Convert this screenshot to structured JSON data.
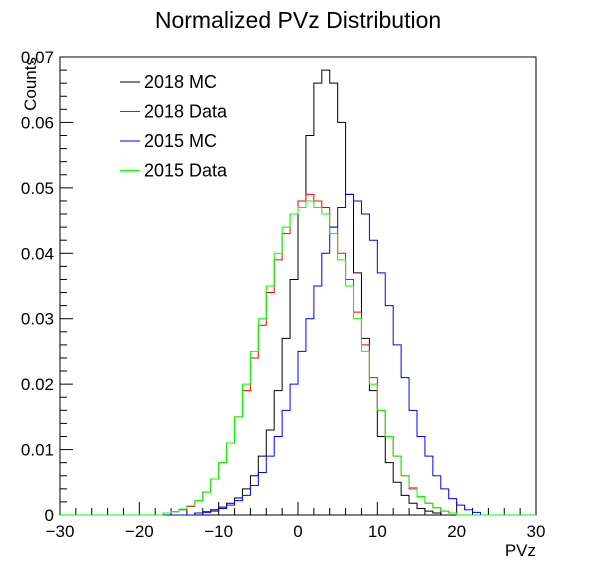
{
  "chart_data": {
    "type": "histogram",
    "title": "Normalized PVz Distribution",
    "xlabel": "PVz",
    "ylabel": "Counts",
    "xlim": [
      -30,
      30
    ],
    "ylim": [
      0,
      0.07
    ],
    "bin_width": 1,
    "x_ticks": [
      "−30",
      "−20",
      "−10",
      "0",
      "10",
      "20",
      "30"
    ],
    "y_ticks": [
      "0",
      "0.01",
      "0.02",
      "0.03",
      "0.04",
      "0.05",
      "0.06",
      "0.07"
    ],
    "x_tick_values": [
      -30,
      -20,
      -10,
      0,
      10,
      20,
      30
    ],
    "y_tick_values": [
      0,
      0.01,
      0.02,
      0.03,
      0.04,
      0.05,
      0.06,
      0.07
    ],
    "legend_position": "top-left",
    "series": [
      {
        "name": "2018 MC",
        "color": "#000000",
        "bin_edges_start": -15,
        "values": [
          0,
          0,
          0.0003,
          0.0005,
          0.0008,
          0.0012,
          0.0018,
          0.0026,
          0.004,
          0.006,
          0.009,
          0.013,
          0.019,
          0.027,
          0.036,
          0.048,
          0.058,
          0.066,
          0.068,
          0.066,
          0.06,
          0.049,
          0.037,
          0.027,
          0.019,
          0.012,
          0.008,
          0.005,
          0.003,
          0.0018,
          0.001,
          0.0006,
          0.0003,
          0,
          0
        ]
      },
      {
        "name": "2018 Data",
        "color": "#ff0000",
        "bin_edges_start": -18,
        "values": [
          0,
          0.0003,
          0.0005,
          0.0008,
          0.0013,
          0.0022,
          0.0035,
          0.0055,
          0.008,
          0.011,
          0.015,
          0.019,
          0.024,
          0.029,
          0.034,
          0.039,
          0.043,
          0.046,
          0.048,
          0.049,
          0.048,
          0.047,
          0.044,
          0.04,
          0.036,
          0.031,
          0.026,
          0.021,
          0.016,
          0.012,
          0.009,
          0.006,
          0.004,
          0.0028,
          0.0018,
          0.0011,
          0.0006,
          0.0003,
          0
        ]
      },
      {
        "name": "2015 MC",
        "color": "#0000ff",
        "bin_edges_start": -14,
        "values": [
          0,
          0.0003,
          0.0004,
          0.0006,
          0.001,
          0.0015,
          0.0022,
          0.003,
          0.0045,
          0.0065,
          0.009,
          0.012,
          0.016,
          0.02,
          0.025,
          0.03,
          0.035,
          0.04,
          0.044,
          0.047,
          0.049,
          0.048,
          0.046,
          0.042,
          0.037,
          0.032,
          0.026,
          0.021,
          0.016,
          0.012,
          0.009,
          0.006,
          0.004,
          0.0025,
          0.0015,
          0.0008,
          0.0004,
          0
        ]
      },
      {
        "name": "2015 Data",
        "color": "#00ff00",
        "bin_edges_start": -18,
        "values": [
          0,
          0.0003,
          0.0005,
          0.0009,
          0.0014,
          0.0022,
          0.0035,
          0.0055,
          0.008,
          0.011,
          0.015,
          0.02,
          0.025,
          0.03,
          0.035,
          0.04,
          0.044,
          0.046,
          0.047,
          0.048,
          0.047,
          0.046,
          0.043,
          0.039,
          0.035,
          0.03,
          0.025,
          0.02,
          0.016,
          0.012,
          0.009,
          0.006,
          0.0042,
          0.0028,
          0.0018,
          0.0011,
          0.0006,
          0.0003,
          0
        ]
      }
    ]
  }
}
